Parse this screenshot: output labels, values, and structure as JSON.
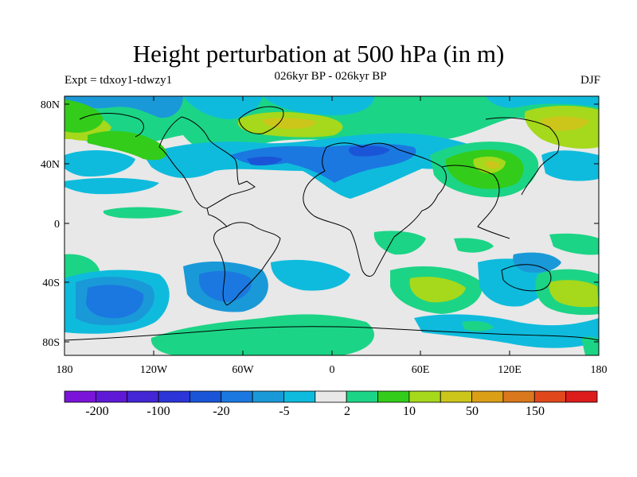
{
  "title": "Height perturbation at 500 hPa (in m)",
  "subtitle_left": "Expt = tdxoy1-tdwzy1",
  "subtitle_center": "026kyr BP - 026kyr BP",
  "subtitle_right": "DJF",
  "chart_data": {
    "type": "heatmap",
    "title": "Height perturbation at 500 hPa (in m)",
    "lon_range": [
      -180,
      180
    ],
    "lat_range": [
      -90,
      90
    ],
    "x_ticks": [
      "180",
      "120W",
      "60W",
      "0",
      "60E",
      "120E",
      "180"
    ],
    "x_tick_values": [
      -180,
      -120,
      -60,
      0,
      60,
      120,
      180
    ],
    "y_ticks": [
      "80N",
      "40N",
      "0",
      "40S",
      "80S"
    ],
    "y_tick_values": [
      80,
      40,
      0,
      -40,
      -80
    ],
    "colorbar": {
      "labels": [
        "-200",
        "-100",
        "-20",
        "-5",
        "2",
        "10",
        "50",
        "150"
      ],
      "colors": [
        "#7b14d9",
        "#5f19d6",
        "#4426d4",
        "#2c35d8",
        "#1a55d8",
        "#1b78e0",
        "#1a99d8",
        "#0fbbdc",
        "#e8e8e8",
        "#1cd486",
        "#33cc1a",
        "#a6d81b",
        "#ccc61b",
        "#db9f16",
        "#d9781c",
        "#e0481b",
        "#dd1c1c"
      ],
      "neutral_color": "#e8e8e8"
    }
  }
}
